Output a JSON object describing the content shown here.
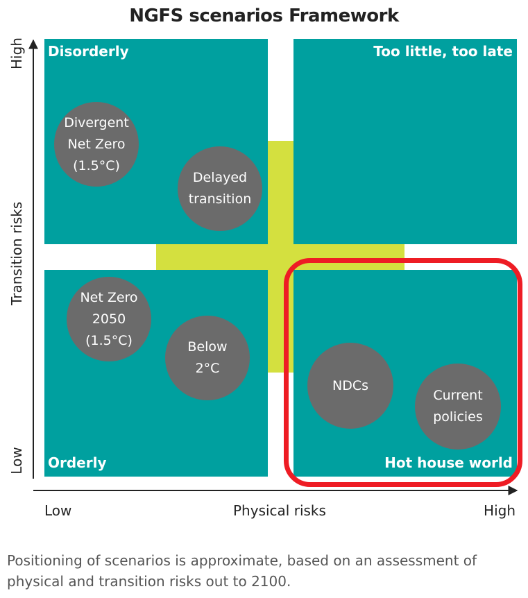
{
  "title": "NGFS scenarios Framework",
  "colors": {
    "quadrant": "#00a09f",
    "cross": "#d4e03f",
    "circle": "#6b6b6b",
    "highlight": "#ee1c24"
  },
  "quadrants": {
    "top_left": "Disorderly",
    "top_right": "Too little, too late",
    "bottom_left": "Orderly",
    "bottom_right": "Hot house world"
  },
  "scenarios": {
    "divergent": "Divergent\nNet Zero\n(1.5°C)",
    "delayed": "Delayed\ntransition",
    "netzero": "Net Zero\n2050\n(1.5°C)",
    "below2": "Below\n2°C",
    "ndcs": "NDCs",
    "current": "Current\npolicies"
  },
  "y_axis": {
    "label": "Transition risks",
    "high": "High",
    "low": "Low"
  },
  "x_axis": {
    "label": "Physical risks",
    "low": "Low",
    "high": "High"
  },
  "footnote": "Positioning of scenarios is approximate, based on an assessment of physical and transition risks out to 2100."
}
